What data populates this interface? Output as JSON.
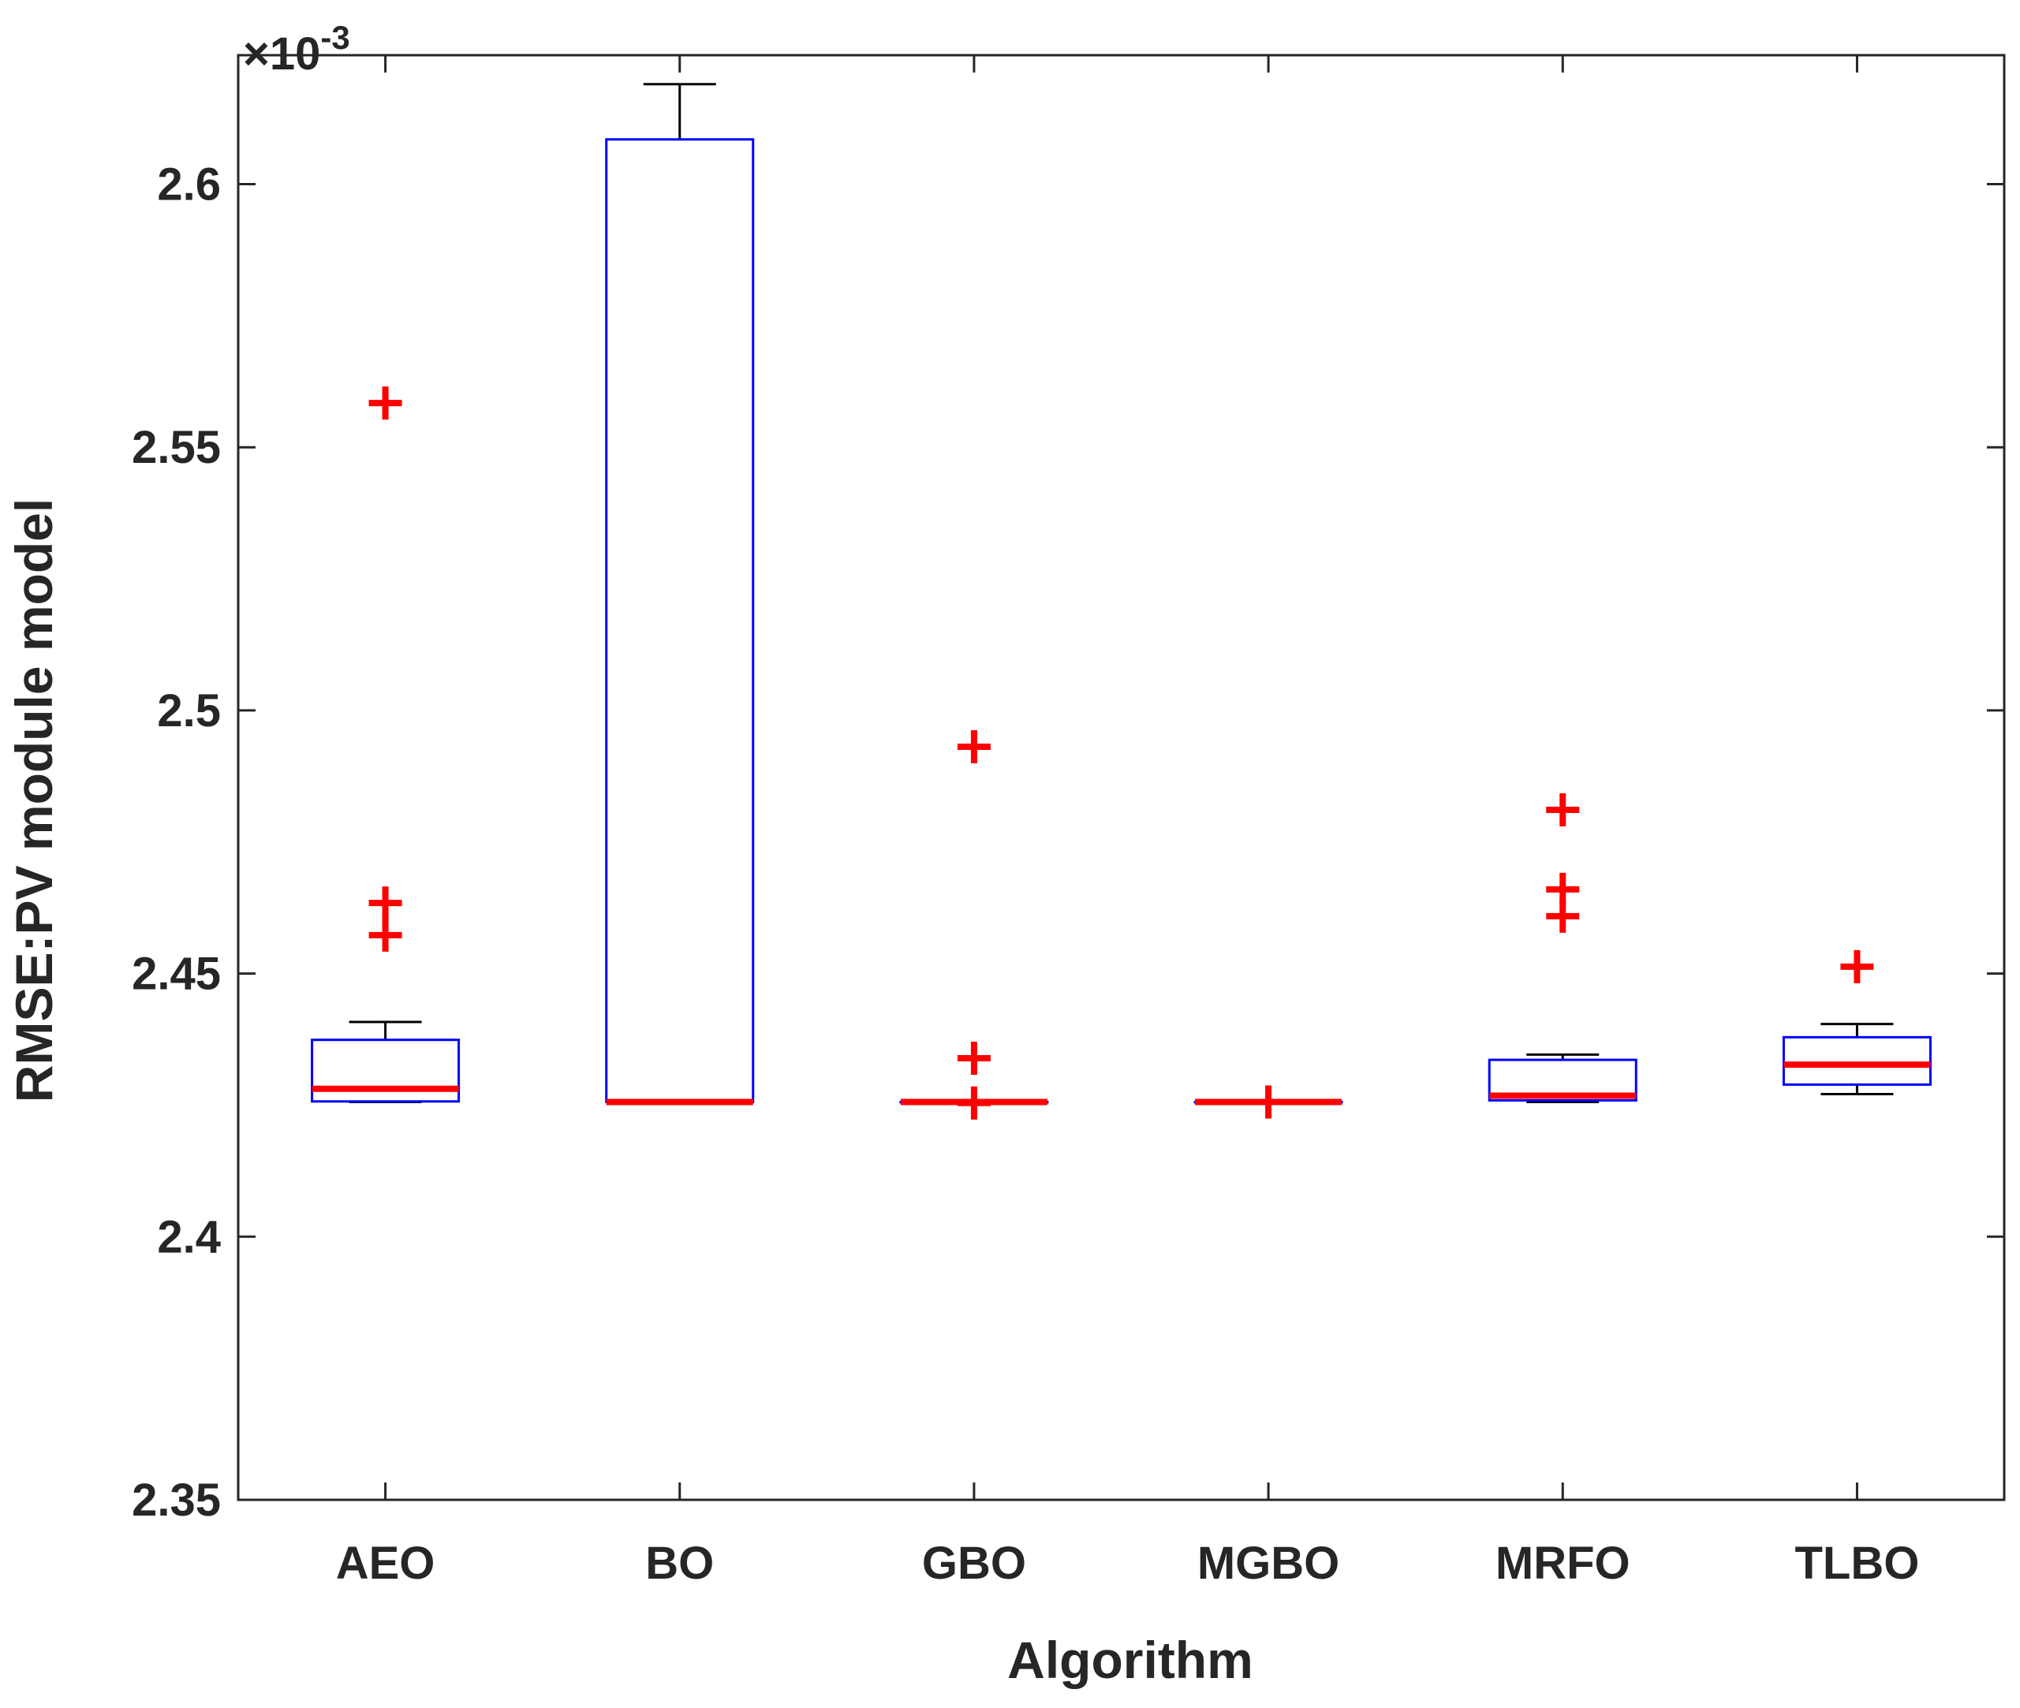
{
  "chart_data": {
    "type": "box",
    "xlabel": "Algorithm",
    "ylabel": "RMSE:PV module model",
    "exponent_label": {
      "base": "×10",
      "power": "-3"
    },
    "ylim": [
      2.35,
      2.6245
    ],
    "yticks": [
      "2.35",
      "2.4",
      "2.45",
      "2.5",
      "2.55",
      "2.6"
    ],
    "ytick_values": [
      2.35,
      2.4,
      2.45,
      2.5,
      2.55,
      2.6
    ],
    "categories": [
      "AEO",
      "BO",
      "GBO",
      "MGBO",
      "MRFO",
      "TLBO"
    ],
    "boxes": [
      {
        "name": "AEO",
        "q1": 2.4257,
        "median": 2.4281,
        "q3": 2.4374,
        "whisker_low": 2.4256,
        "whisker_high": 2.4408,
        "outliers": [
          2.5584,
          2.4634,
          2.4573
        ]
      },
      {
        "name": "BO",
        "q1": 2.4256,
        "median": 2.4256,
        "q3": 2.6085,
        "whisker_low": 2.4256,
        "whisker_high": 2.619,
        "outliers": []
      },
      {
        "name": "GBO",
        "q1": 2.4256,
        "median": 2.4256,
        "q3": 2.4256,
        "whisker_low": 2.4256,
        "whisker_high": 2.4256,
        "outliers": [
          2.4931,
          2.4339,
          2.4254
        ]
      },
      {
        "name": "MGBO",
        "q1": 2.4256,
        "median": 2.4256,
        "q3": 2.4256,
        "whisker_low": 2.4256,
        "whisker_high": 2.4256,
        "outliers": [
          2.4256
        ]
      },
      {
        "name": "MRFO",
        "q1": 2.4259,
        "median": 2.4268,
        "q3": 2.4336,
        "whisker_low": 2.4256,
        "whisker_high": 2.4346,
        "outliers": [
          2.4811,
          2.466,
          2.4609
        ]
      },
      {
        "name": "TLBO",
        "q1": 2.4289,
        "median": 2.4327,
        "q3": 2.4379,
        "whisker_low": 2.4271,
        "whisker_high": 2.4404,
        "outliers": [
          2.4513
        ]
      }
    ],
    "colors": {
      "box": "#0000ff",
      "median": "#ff0000",
      "outlier": "#ff0000",
      "whisker": "#000000",
      "axis": "#262626"
    },
    "grid": false,
    "legend": "none"
  }
}
